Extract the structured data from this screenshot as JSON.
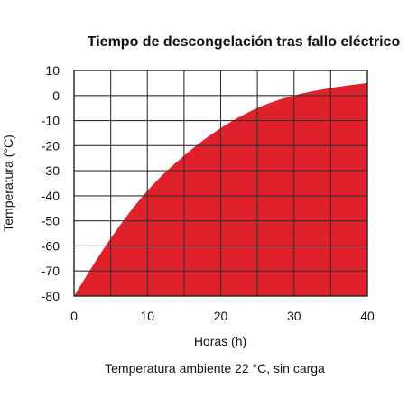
{
  "chart_data": {
    "type": "area",
    "title": "Tiempo de descongelación tras fallo eléctrico",
    "xlabel": "Horas (h)",
    "ylabel": "Temperatura (°C)",
    "caption": "Temperatura ambiente 22 °C, sin carga",
    "xlim": [
      0,
      40
    ],
    "ylim": [
      -80,
      10
    ],
    "x_ticks": [
      0,
      10,
      20,
      30,
      40
    ],
    "y_ticks": [
      10,
      0,
      -10,
      -20,
      -30,
      -40,
      -50,
      -60,
      -70,
      -80
    ],
    "grid": true,
    "series": [
      {
        "color": "#e0202a",
        "x": [
          0,
          5,
          10,
          15,
          20,
          25,
          30,
          35,
          40
        ],
        "y": [
          -80,
          -57,
          -38,
          -24,
          -13,
          -5,
          0,
          3,
          5
        ]
      }
    ]
  }
}
